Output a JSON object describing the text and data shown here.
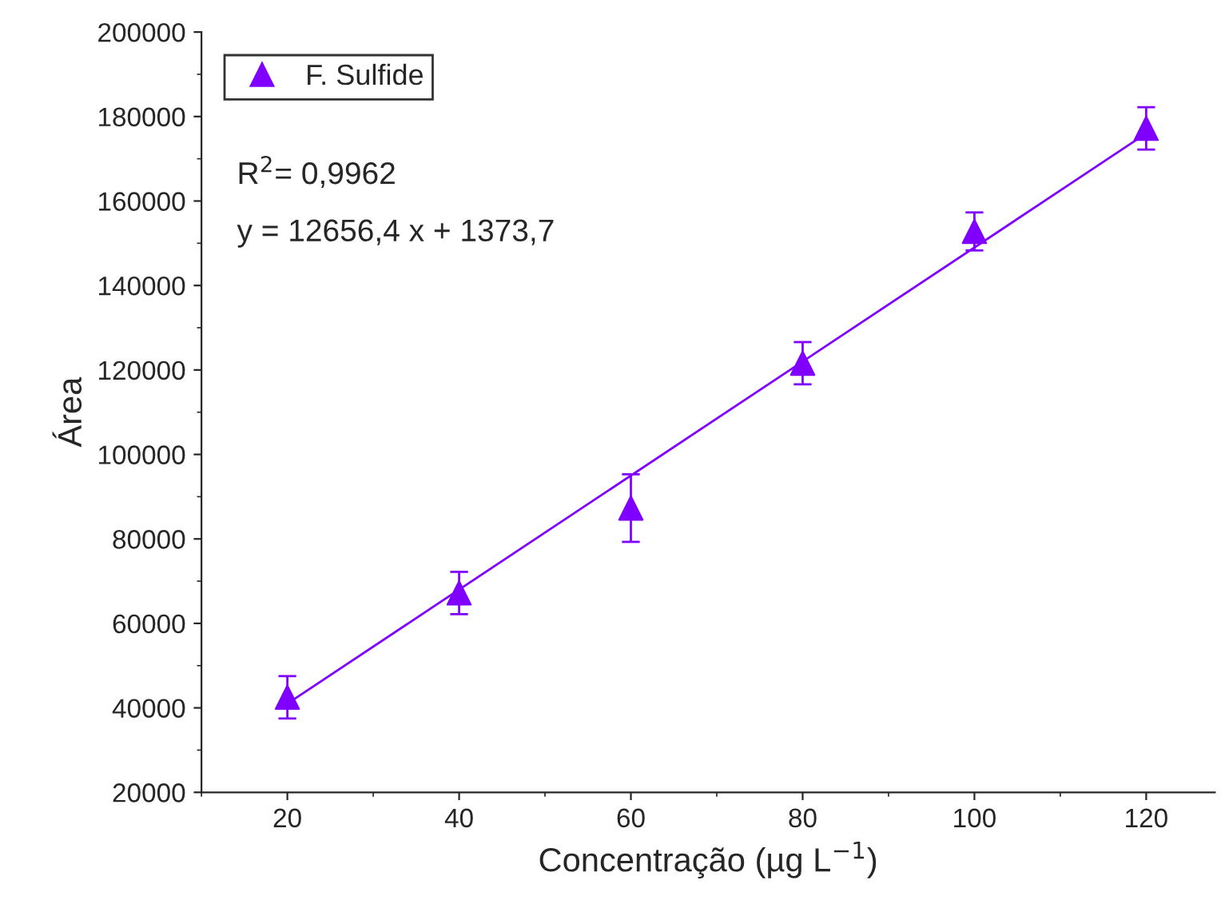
{
  "chart_data": {
    "type": "scatter",
    "xlabel": "Concentração (µg L$^{−1}$)",
    "ylabel": "Área",
    "annotations": [
      "R$^{2}$= 0,9962",
      "y = 12656,4 x + 1373,7"
    ],
    "series": [
      {
        "name": "F. Sulfide",
        "color": "#8000ff",
        "x": [
          20,
          40,
          60,
          80,
          100,
          120
        ],
        "values": [
          42500,
          67200,
          87300,
          121600,
          152800,
          177200
        ],
        "errors": [
          5000,
          5000,
          8000,
          5000,
          4500,
          5000
        ],
        "marker": "triangle"
      },
      {
        "type": "line",
        "color": "#8000ff",
        "x": [
          20,
          120
        ],
        "values": [
          41000,
          176000
        ],
        "marker": "none",
        "line_style": "solid"
      }
    ],
    "xlim": [
      10,
      128
    ],
    "xticks": [
      20,
      40,
      60,
      80,
      100,
      120
    ],
    "ylim": [
      20000,
      200000
    ],
    "yticks": [
      20000,
      40000,
      60000,
      80000,
      100000,
      120000,
      140000,
      160000,
      180000,
      200000
    ],
    "grid": false,
    "legend": "top left"
  }
}
